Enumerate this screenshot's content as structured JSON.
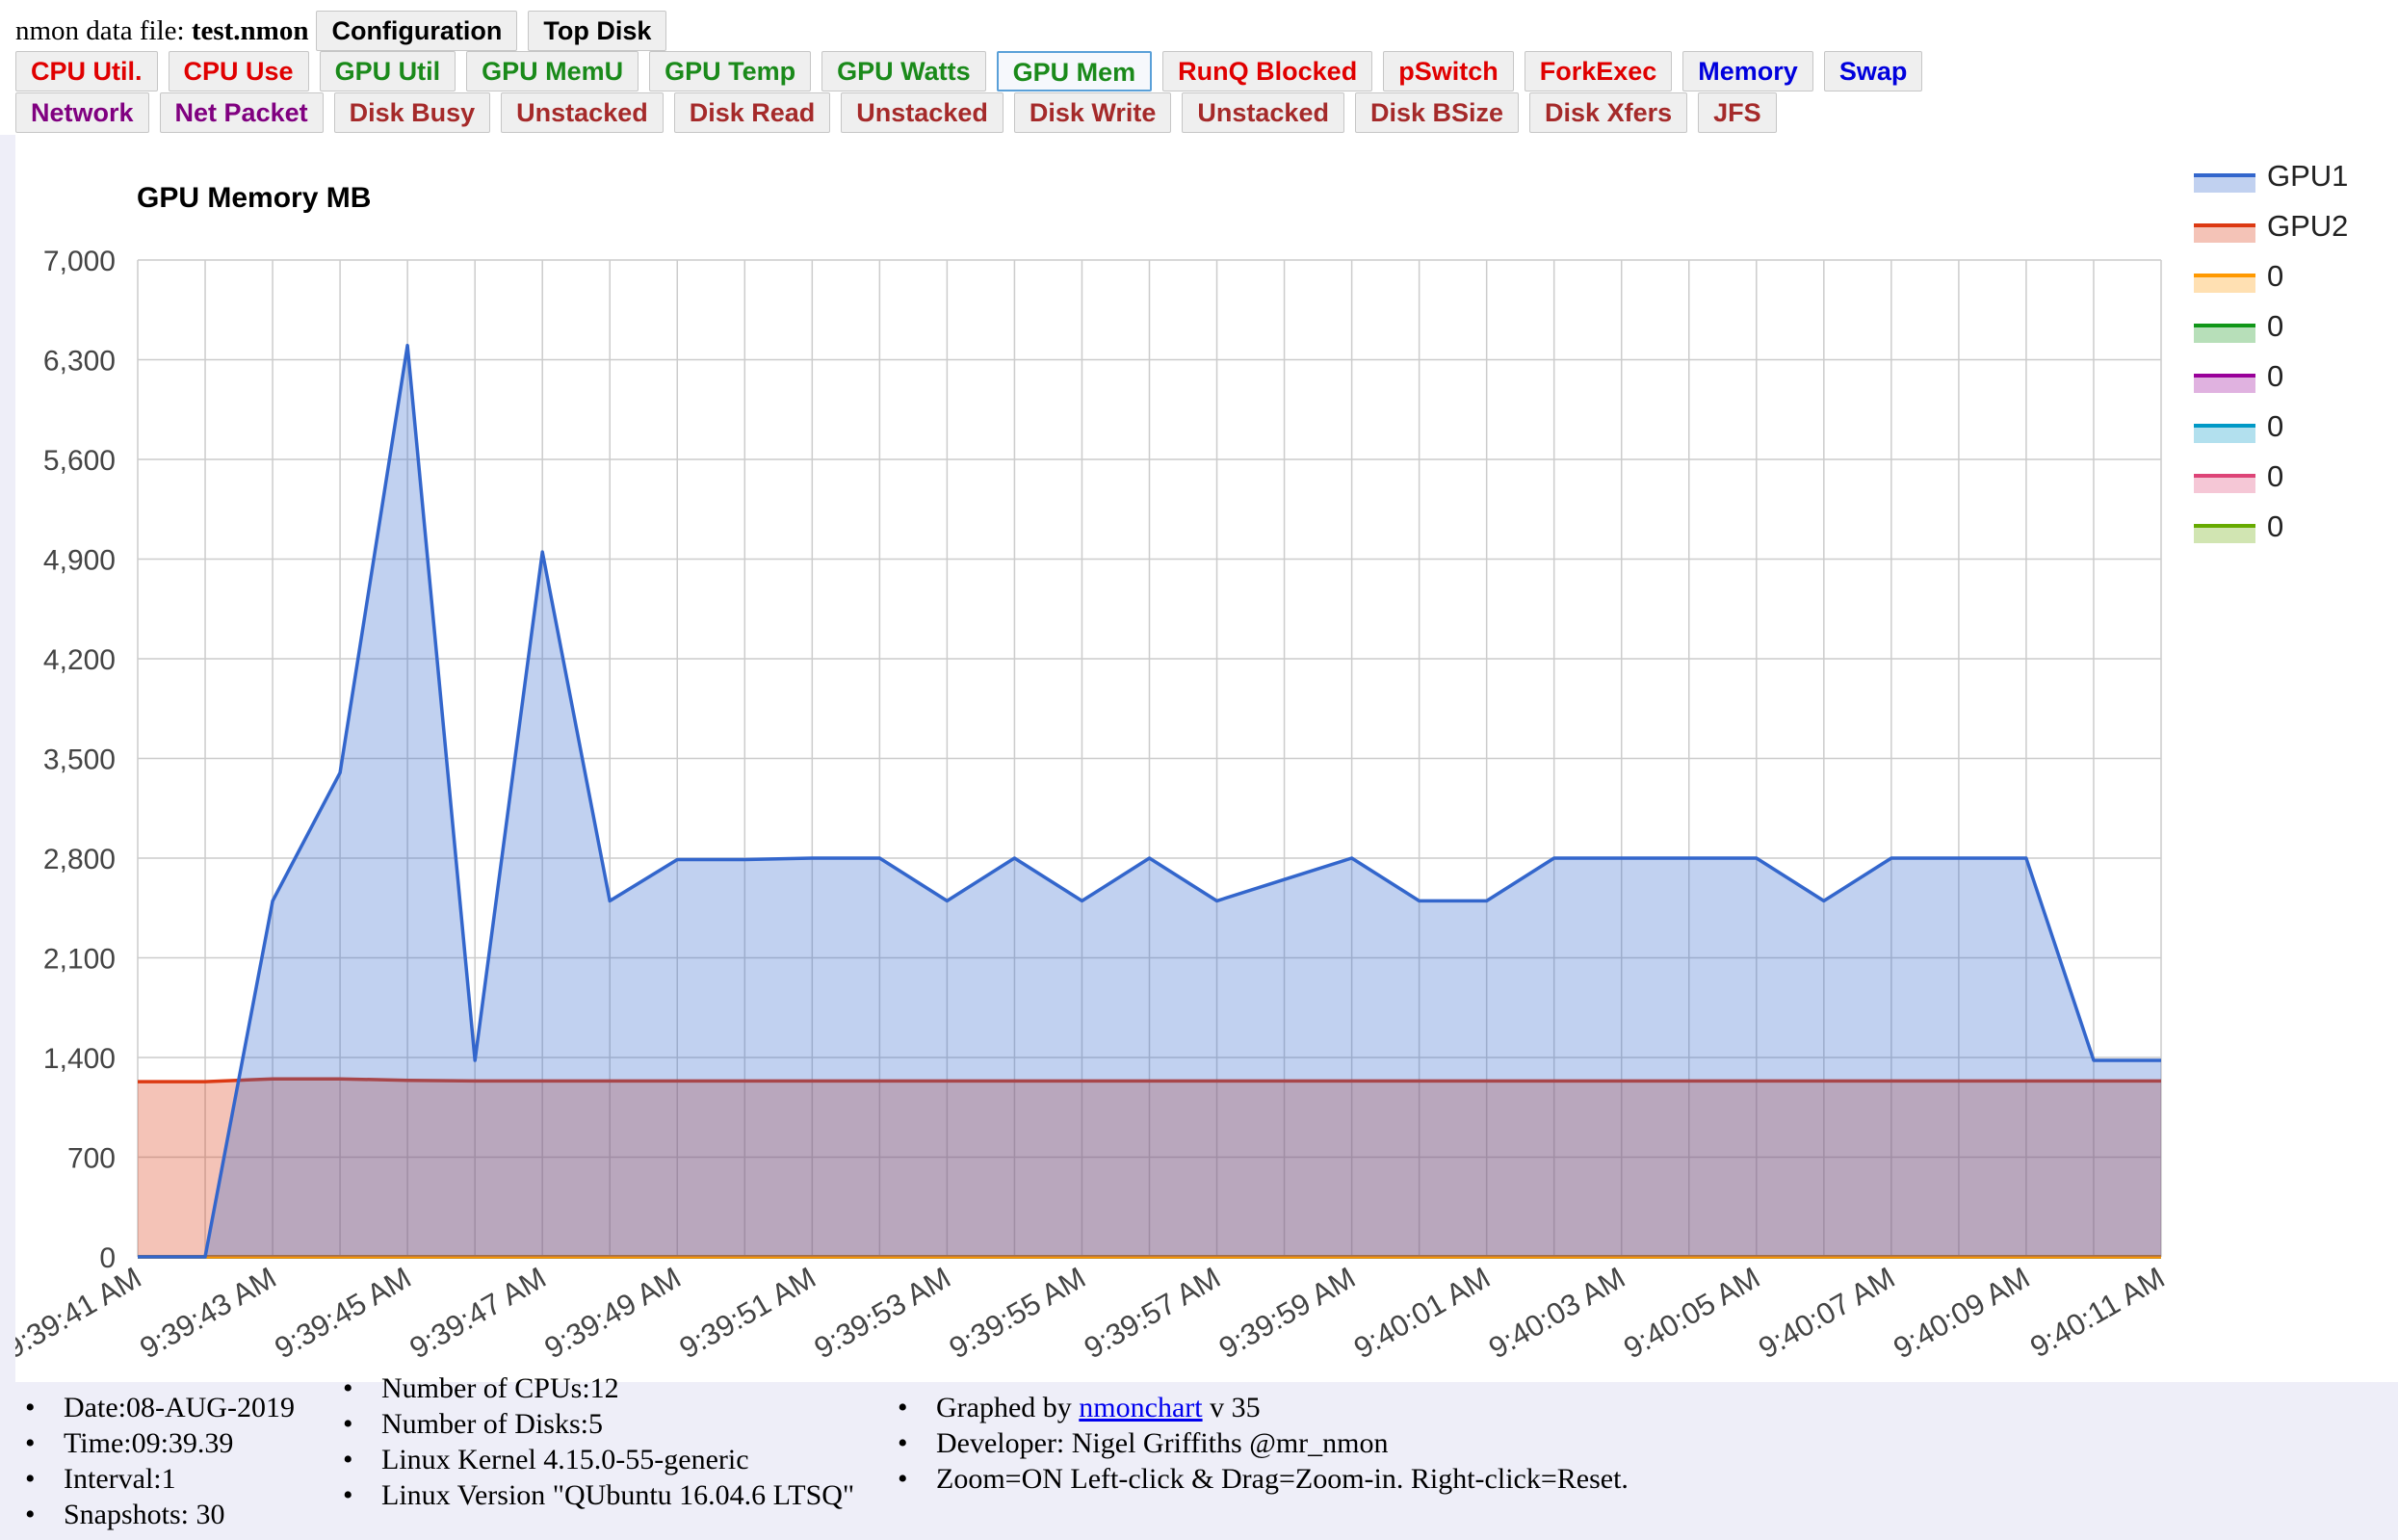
{
  "header": {
    "file_label": "nmon data file:",
    "file_name": "test.nmon",
    "buttons_row0": [
      {
        "label": "Configuration",
        "color": "#000000"
      },
      {
        "label": "Top Disk",
        "color": "#000000"
      }
    ],
    "buttons_row1": [
      {
        "label": "CPU Util.",
        "color": "#e00000"
      },
      {
        "label": "CPU Use",
        "color": "#e00000"
      },
      {
        "label": "GPU Util",
        "color": "#1a8a1a"
      },
      {
        "label": "GPU MemU",
        "color": "#1a8a1a"
      },
      {
        "label": "GPU Temp",
        "color": "#1a8a1a"
      },
      {
        "label": "GPU Watts",
        "color": "#1a8a1a"
      },
      {
        "label": "GPU Mem",
        "color": "#1a8a1a",
        "active": true
      },
      {
        "label": "RunQ Blocked",
        "color": "#e00000"
      },
      {
        "label": "pSwitch",
        "color": "#e00000"
      },
      {
        "label": "ForkExec",
        "color": "#e00000"
      },
      {
        "label": "Memory",
        "color": "#0000dd"
      },
      {
        "label": "Swap",
        "color": "#0000dd"
      }
    ],
    "buttons_row2": [
      {
        "label": "Network",
        "color": "#800080"
      },
      {
        "label": "Net Packet",
        "color": "#800080"
      },
      {
        "label": "Disk Busy",
        "color": "#a52a2a"
      },
      {
        "label": "Unstacked",
        "color": "#a52a2a"
      },
      {
        "label": "Disk Read",
        "color": "#a52a2a"
      },
      {
        "label": "Unstacked",
        "color": "#a52a2a"
      },
      {
        "label": "Disk Write",
        "color": "#a52a2a"
      },
      {
        "label": "Unstacked",
        "color": "#a52a2a"
      },
      {
        "label": "Disk BSize",
        "color": "#a52a2a"
      },
      {
        "label": "Disk Xfers",
        "color": "#a52a2a"
      },
      {
        "label": "JFS",
        "color": "#a52a2a"
      }
    ]
  },
  "chart_data": {
    "type": "area",
    "title": "GPU Memory MB",
    "xlabel": "",
    "ylabel": "",
    "ylim": [
      0,
      7000
    ],
    "yticks": [
      0,
      700,
      1400,
      2100,
      2800,
      3500,
      4200,
      4900,
      5600,
      6300,
      7000
    ],
    "ytick_labels": [
      "0",
      "700",
      "1,400",
      "2,100",
      "2,800",
      "3,500",
      "4,200",
      "4,900",
      "5,600",
      "6,300",
      "7,000"
    ],
    "x": [
      "9:39:41 AM",
      "9:39:42 AM",
      "9:39:43 AM",
      "9:39:44 AM",
      "9:39:45 AM",
      "9:39:46 AM",
      "9:39:47 AM",
      "9:39:48 AM",
      "9:39:49 AM",
      "9:39:50 AM",
      "9:39:51 AM",
      "9:39:52 AM",
      "9:39:53 AM",
      "9:39:54 AM",
      "9:39:55 AM",
      "9:39:56 AM",
      "9:39:57 AM",
      "9:39:58 AM",
      "9:39:59 AM",
      "9:40:00 AM",
      "9:40:01 AM",
      "9:40:02 AM",
      "9:40:03 AM",
      "9:40:04 AM",
      "9:40:05 AM",
      "9:40:06 AM",
      "9:40:07 AM",
      "9:40:08 AM",
      "9:40:09 AM",
      "9:40:10 AM",
      "9:40:11 AM"
    ],
    "xtick_labels": [
      "9:39:41 AM",
      "9:39:43 AM",
      "9:39:45 AM",
      "9:39:47 AM",
      "9:39:49 AM",
      "9:39:51 AM",
      "9:39:53 AM",
      "9:39:55 AM",
      "9:39:57 AM",
      "9:39:59 AM",
      "9:40:01 AM",
      "9:40:03 AM",
      "9:40:05 AM",
      "9:40:07 AM",
      "9:40:09 AM",
      "9:40:11 AM"
    ],
    "grid": true,
    "legend_position": "right",
    "series": [
      {
        "name": "GPU1",
        "color": "#3366cc",
        "values": [
          0,
          0,
          2500,
          3400,
          6400,
          1380,
          4950,
          2500,
          2790,
          2790,
          2800,
          2800,
          2500,
          2800,
          2500,
          2800,
          2500,
          2650,
          2800,
          2500,
          2500,
          2800,
          2800,
          2800,
          2800,
          2500,
          2800,
          2800,
          2800,
          1380,
          1380
        ]
      },
      {
        "name": "GPU2",
        "color": "#dc3912",
        "values": [
          1230,
          1230,
          1250,
          1250,
          1240,
          1235,
          1235,
          1235,
          1235,
          1235,
          1235,
          1235,
          1235,
          1235,
          1235,
          1235,
          1235,
          1235,
          1235,
          1235,
          1235,
          1235,
          1235,
          1235,
          1235,
          1235,
          1235,
          1235,
          1235,
          1235,
          1235
        ]
      },
      {
        "name": "0",
        "color": "#ff9900",
        "values": [
          0,
          0,
          0,
          0,
          0,
          0,
          0,
          0,
          0,
          0,
          0,
          0,
          0,
          0,
          0,
          0,
          0,
          0,
          0,
          0,
          0,
          0,
          0,
          0,
          0,
          0,
          0,
          0,
          0,
          0,
          0
        ]
      },
      {
        "name": "0",
        "color": "#109618",
        "values": [
          0,
          0,
          0,
          0,
          0,
          0,
          0,
          0,
          0,
          0,
          0,
          0,
          0,
          0,
          0,
          0,
          0,
          0,
          0,
          0,
          0,
          0,
          0,
          0,
          0,
          0,
          0,
          0,
          0,
          0,
          0
        ]
      },
      {
        "name": "0",
        "color": "#990099",
        "values": [
          0,
          0,
          0,
          0,
          0,
          0,
          0,
          0,
          0,
          0,
          0,
          0,
          0,
          0,
          0,
          0,
          0,
          0,
          0,
          0,
          0,
          0,
          0,
          0,
          0,
          0,
          0,
          0,
          0,
          0,
          0
        ]
      },
      {
        "name": "0",
        "color": "#0099c6",
        "values": [
          0,
          0,
          0,
          0,
          0,
          0,
          0,
          0,
          0,
          0,
          0,
          0,
          0,
          0,
          0,
          0,
          0,
          0,
          0,
          0,
          0,
          0,
          0,
          0,
          0,
          0,
          0,
          0,
          0,
          0,
          0
        ]
      },
      {
        "name": "0",
        "color": "#dd4477",
        "values": [
          0,
          0,
          0,
          0,
          0,
          0,
          0,
          0,
          0,
          0,
          0,
          0,
          0,
          0,
          0,
          0,
          0,
          0,
          0,
          0,
          0,
          0,
          0,
          0,
          0,
          0,
          0,
          0,
          0,
          0,
          0
        ]
      },
      {
        "name": "0",
        "color": "#66aa00",
        "values": [
          0,
          0,
          0,
          0,
          0,
          0,
          0,
          0,
          0,
          0,
          0,
          0,
          0,
          0,
          0,
          0,
          0,
          0,
          0,
          0,
          0,
          0,
          0,
          0,
          0,
          0,
          0,
          0,
          0,
          0,
          0
        ]
      }
    ]
  },
  "footer": {
    "col1": [
      "Date:08-AUG-2019",
      "Time:09:39.39",
      "Interval:1",
      "Snapshots: 30"
    ],
    "col2": [
      "Number of CPUs:12",
      "Number of Disks:5",
      "Linux Kernel 4.15.0-55-generic",
      "Linux Version \"QUbuntu 16.04.6 LTSQ\""
    ],
    "graphed_by_prefix": "Graphed by",
    "graphed_by_link": "nmonchart",
    "graphed_by_suffix": "v 35",
    "developer": "Developer: Nigel Griffiths @mr_nmon",
    "zoom": "Zoom=ON Left-click & Drag=Zoom-in. Right-click=Reset."
  }
}
